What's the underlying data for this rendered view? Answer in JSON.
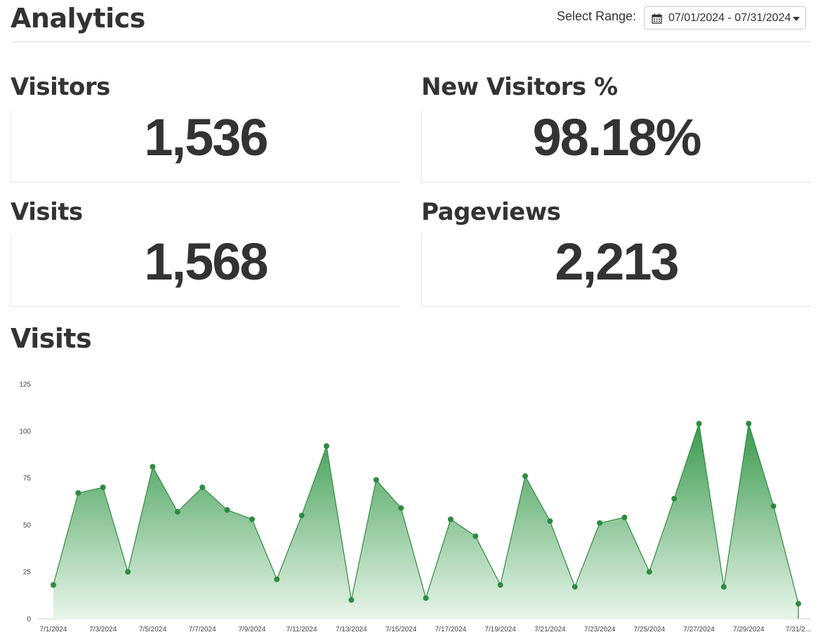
{
  "page": {
    "title": "Analytics"
  },
  "range": {
    "label": "Select Range:",
    "value": "07/01/2024 - 07/31/2024",
    "icon": "calendar-icon"
  },
  "stats": [
    {
      "label": "Visitors",
      "value": "1,536"
    },
    {
      "label": "New Visitors %",
      "value": "98.18%"
    },
    {
      "label": "Visits",
      "value": "1,568"
    },
    {
      "label": "Pageviews",
      "value": "2,213"
    }
  ],
  "chart": {
    "title": "Visits"
  },
  "colors": {
    "line": "#2e8b3e",
    "fill_top": "#3a9a4e",
    "fill_bottom": "#e8f5ea",
    "axis": "#cccccc"
  },
  "chart_data": {
    "type": "area",
    "title": "Visits",
    "xlabel": "",
    "ylabel": "",
    "ylim": [
      0,
      125
    ],
    "yticks": [
      0,
      25,
      50,
      75,
      100,
      125
    ],
    "grid": false,
    "x": [
      "7/1/2024",
      "7/2/2024",
      "7/3/2024",
      "7/4/2024",
      "7/5/2024",
      "7/6/2024",
      "7/7/2024",
      "7/8/2024",
      "7/9/2024",
      "7/10/2024",
      "7/11/2024",
      "7/12/2024",
      "7/13/2024",
      "7/14/2024",
      "7/15/2024",
      "7/16/2024",
      "7/17/2024",
      "7/18/2024",
      "7/19/2024",
      "7/20/2024",
      "7/21/2024",
      "7/22/2024",
      "7/23/2024",
      "7/24/2024",
      "7/25/2024",
      "7/26/2024",
      "7/27/2024",
      "7/28/2024",
      "7/29/2024",
      "7/30/2024",
      "7/31/2024"
    ],
    "x_tick_labels": [
      "7/1/2024",
      "7/3/2024",
      "7/5/2024",
      "7/7/2024",
      "7/9/2024",
      "7/11/2024",
      "7/13/2024",
      "7/15/2024",
      "7/17/2024",
      "7/19/2024",
      "7/21/2024",
      "7/23/2024",
      "7/25/2024",
      "7/27/2024",
      "7/29/2024",
      "7/31/2..."
    ],
    "series": [
      {
        "values": [
          18,
          67,
          70,
          25,
          81,
          57,
          70,
          58,
          53,
          21,
          55,
          92,
          10,
          74,
          59,
          11,
          53,
          44,
          18,
          76,
          52,
          17,
          51,
          54,
          25,
          64,
          104,
          17,
          104,
          60,
          8
        ]
      }
    ]
  }
}
